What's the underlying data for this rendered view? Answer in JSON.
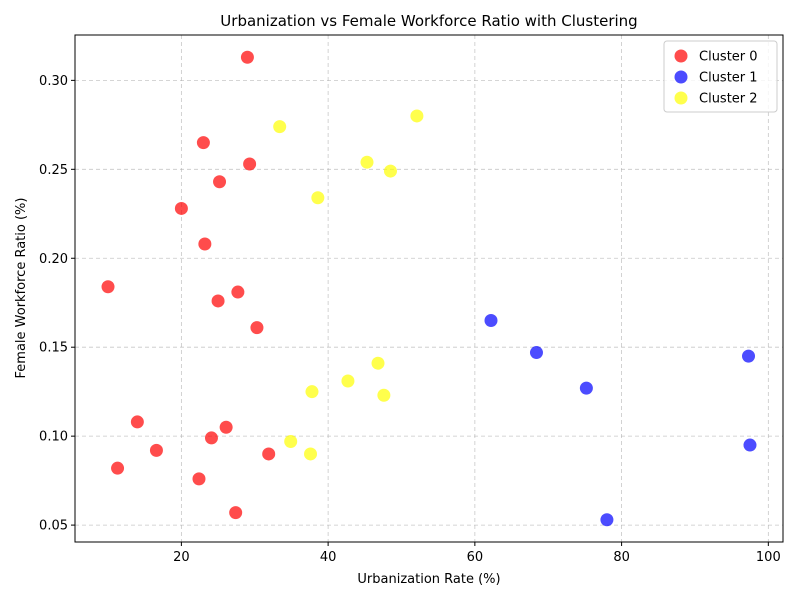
{
  "chart_data": {
    "type": "scatter",
    "title": "Urbanization vs Female Workforce Ratio with Clustering",
    "xlabel": "Urbanization Rate (%)",
    "ylabel": "Female Workforce Ratio (%)",
    "xlim": [
      5.5,
      102
    ],
    "ylim": [
      0.0405,
      0.3255
    ],
    "xticks": [
      20,
      40,
      60,
      80,
      100
    ],
    "xtick_labels": [
      "20",
      "40",
      "60",
      "80",
      "100"
    ],
    "yticks": [
      0.05,
      0.1,
      0.15,
      0.2,
      0.25,
      0.3
    ],
    "ytick_labels": [
      "0.05",
      "0.10",
      "0.15",
      "0.20",
      "0.25",
      "0.30"
    ],
    "grid": true,
    "legend_position": "top-right",
    "series": [
      {
        "name": "Cluster 0",
        "color": "#ff0000",
        "points": [
          [
            29.0,
            0.313
          ],
          [
            23.0,
            0.265
          ],
          [
            29.3,
            0.253
          ],
          [
            25.2,
            0.243
          ],
          [
            20.0,
            0.228
          ],
          [
            23.2,
            0.208
          ],
          [
            10.0,
            0.184
          ],
          [
            27.7,
            0.181
          ],
          [
            25.0,
            0.176
          ],
          [
            30.3,
            0.161
          ],
          [
            14.0,
            0.108
          ],
          [
            26.1,
            0.105
          ],
          [
            24.1,
            0.099
          ],
          [
            16.6,
            0.092
          ],
          [
            31.9,
            0.09
          ],
          [
            11.3,
            0.082
          ],
          [
            22.4,
            0.076
          ],
          [
            27.4,
            0.057
          ]
        ]
      },
      {
        "name": "Cluster 1",
        "color": "#0000ff",
        "points": [
          [
            62.2,
            0.165
          ],
          [
            68.4,
            0.147
          ],
          [
            97.3,
            0.145
          ],
          [
            75.2,
            0.127
          ],
          [
            97.5,
            0.095
          ],
          [
            78.0,
            0.053
          ]
        ]
      },
      {
        "name": "Cluster 2",
        "color": "#ffff00",
        "points": [
          [
            52.1,
            0.28
          ],
          [
            33.4,
            0.274
          ],
          [
            45.3,
            0.254
          ],
          [
            48.5,
            0.249
          ],
          [
            38.6,
            0.234
          ],
          [
            46.8,
            0.141
          ],
          [
            42.7,
            0.131
          ],
          [
            37.8,
            0.125
          ],
          [
            47.6,
            0.123
          ],
          [
            34.9,
            0.097
          ],
          [
            37.6,
            0.09
          ]
        ]
      }
    ]
  }
}
